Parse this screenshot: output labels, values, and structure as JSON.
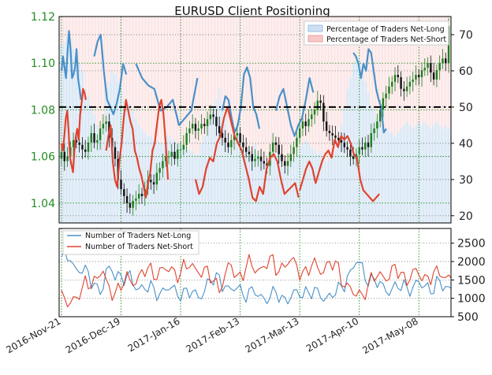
{
  "colors": {
    "long": "#4a90c8",
    "short": "#e0432e",
    "up_candle": "#1e7d1e",
    "down_candle": "#111111",
    "price_axis": "#228b22",
    "grid": "#228b22",
    "long_bg": "#dbe8f5",
    "short_bg": "#fbe3e3"
  },
  "chart_data": [
    {
      "type": "candlestick+line",
      "title": "EURUSD Client Positioning",
      "left_axis": {
        "ticks": [
          "1.04",
          "1.06",
          "1.08",
          "1.10",
          "1.12"
        ],
        "ylim": [
          1.0315,
          1.12
        ]
      },
      "right_axis": {
        "ticks": [
          "20",
          "30",
          "40",
          "50",
          "60",
          "70"
        ],
        "ylim": [
          18,
          75
        ]
      },
      "x_labels": [
        "2016-Nov-21",
        "2016-Dec-19",
        "2017-Jan-16",
        "2017-Feb-13",
        "2017-Mar-13",
        "2017-Apr-10",
        "2017-May-08"
      ],
      "reference_line": 50,
      "legend": [
        "Percentage of Traders Net-Long",
        "Percentage of Traders Net-Short"
      ],
      "close": [
        1.062,
        1.058,
        1.06,
        1.064,
        1.067,
        1.066,
        1.065,
        1.063,
        1.062,
        1.066,
        1.07,
        1.066,
        1.067,
        1.072,
        1.074,
        1.075,
        1.068,
        1.064,
        1.059,
        1.05,
        1.046,
        1.043,
        1.04,
        1.038,
        1.041,
        1.042,
        1.044,
        1.043,
        1.046,
        1.05,
        1.049,
        1.048,
        1.053,
        1.055,
        1.058,
        1.06,
        1.06,
        1.062,
        1.059,
        1.063,
        1.063,
        1.065,
        1.07,
        1.072,
        1.074,
        1.071,
        1.072,
        1.074,
        1.073,
        1.076,
        1.078,
        1.077,
        1.073,
        1.07,
        1.068,
        1.066,
        1.064,
        1.067,
        1.069,
        1.07,
        1.066,
        1.064,
        1.062,
        1.061,
        1.058,
        1.059,
        1.06,
        1.058,
        1.057,
        1.056,
        1.062,
        1.066,
        1.065,
        1.061,
        1.058,
        1.056,
        1.058,
        1.061,
        1.064,
        1.068,
        1.072,
        1.075,
        1.073,
        1.076,
        1.078,
        1.08,
        1.084,
        1.083,
        1.075,
        1.071,
        1.07,
        1.069,
        1.068,
        1.067,
        1.066,
        1.064,
        1.063,
        1.06,
        1.059,
        1.061,
        1.064,
        1.063,
        1.066,
        1.064,
        1.07,
        1.072,
        1.075,
        1.08,
        1.085,
        1.087,
        1.09,
        1.092,
        1.095,
        1.094,
        1.089,
        1.088,
        1.09,
        1.092,
        1.093,
        1.095,
        1.094,
        1.097,
        1.098,
        1.1,
        1.096,
        1.093,
        1.097,
        1.1,
        1.102,
        1.1,
        1.116
      ],
      "net_long_pct": [
        67,
        68,
        70,
        69,
        66,
        64,
        62,
        60,
        55,
        53,
        50,
        48,
        45,
        43,
        44,
        55,
        57,
        60,
        59,
        57,
        55,
        52,
        50,
        51,
        49,
        47,
        45,
        44,
        43,
        42,
        42,
        41,
        41,
        40,
        40,
        42,
        42,
        41,
        41,
        40,
        40,
        39,
        39,
        38,
        38,
        37,
        37,
        40,
        42,
        45,
        48,
        50,
        52,
        55,
        50,
        47,
        40,
        39,
        42,
        45,
        43,
        40,
        38,
        37,
        38,
        40,
        37,
        36,
        35,
        34,
        35,
        36,
        38,
        37,
        35,
        33,
        34,
        35,
        36,
        37,
        39,
        40,
        41,
        40,
        39,
        38,
        37,
        38,
        36,
        35,
        36,
        37,
        38,
        40,
        45,
        50,
        55,
        58,
        62,
        64,
        63,
        62,
        57,
        54,
        50,
        49,
        47,
        45,
        44,
        44,
        43,
        43,
        42,
        43,
        44,
        45,
        46,
        45,
        44,
        45,
        46,
        45,
        46,
        45,
        44,
        45,
        46,
        45,
        44,
        45,
        44,
        45
      ],
      "net_short_pct": [
        33,
        32,
        30,
        31,
        34,
        36,
        38,
        40,
        45,
        47,
        50,
        52,
        55,
        57,
        56,
        45,
        43,
        40,
        41,
        43,
        45,
        48,
        50,
        49,
        51,
        53,
        55,
        56,
        57,
        58,
        58,
        59,
        59,
        60,
        60,
        58,
        58,
        59,
        59,
        60,
        60,
        61,
        61,
        62,
        62,
        63,
        63,
        60,
        58,
        55,
        52,
        50,
        48,
        45,
        50,
        53,
        60,
        61,
        58,
        55,
        57,
        60,
        62,
        63,
        62,
        60,
        63,
        64,
        65,
        66,
        65,
        64,
        62,
        63,
        65,
        67,
        66,
        65,
        64,
        63,
        61,
        60,
        59,
        60,
        61,
        62,
        63,
        62,
        64,
        65,
        64,
        63,
        62,
        60,
        55,
        50,
        45,
        42,
        38,
        36,
        37,
        38,
        43,
        46,
        50,
        51,
        53,
        55,
        56,
        56,
        57,
        57,
        58,
        57,
        56,
        55,
        54,
        55,
        56,
        55,
        54,
        55,
        54,
        55,
        56,
        55,
        54,
        55,
        56,
        55,
        56,
        55
      ],
      "net_long_segments": [
        {
          "from": 0,
          "to": 1,
          "values": [
            60,
            64,
            61,
            58,
            65,
            71,
            66,
            58,
            59,
            61,
            66,
            58,
            55,
            52
          ]
        },
        {
          "from": 11,
          "to": 18,
          "values": [
            64,
            68,
            70,
            60,
            52,
            50,
            48,
            51,
            55,
            62,
            59
          ]
        },
        {
          "from": 25,
          "to": 43,
          "values": [
            62,
            58,
            56,
            55,
            49,
            50,
            52,
            45,
            47,
            49,
            58
          ]
        },
        {
          "from": 54,
          "to": 62,
          "values": [
            49,
            53,
            52,
            47,
            43,
            45,
            50,
            59,
            61,
            58,
            50,
            48,
            44
          ]
        },
        {
          "from": 72,
          "to": 81,
          "values": [
            49,
            53,
            55,
            50,
            45,
            42,
            45,
            47,
            52,
            58,
            54
          ]
        },
        {
          "from": 98,
          "to": 104,
          "values": [
            65,
            64,
            62,
            58,
            62,
            60,
            66,
            65,
            60,
            55,
            52,
            50,
            43,
            44
          ]
        }
      ],
      "net_short_segments": [
        {
          "from": 0,
          "to": 1,
          "values": [
            40,
            38,
            42,
            47,
            49,
            43,
            36,
            34,
            32,
            38,
            42,
            44,
            41,
            48,
            51,
            55,
            54,
            52
          ]
        },
        {
          "from": 15,
          "to": 25,
          "values": [
            38,
            42,
            45,
            35,
            30,
            28,
            35,
            40,
            47,
            52,
            49,
            46,
            44,
            38,
            36,
            33,
            31,
            28,
            25,
            29,
            32,
            38,
            40,
            45,
            50,
            52,
            48,
            40,
            30
          ]
        },
        {
          "from": 45,
          "to": 70,
          "values": [
            30,
            26,
            28,
            33,
            36,
            35,
            40,
            42,
            47,
            50,
            46,
            42,
            40,
            38,
            34,
            30,
            25,
            24,
            28,
            26,
            33,
            36,
            37,
            35,
            30,
            26,
            27,
            28,
            29,
            25
          ]
        },
        {
          "from": 80,
          "to": 98,
          "values": [
            27,
            30,
            33,
            35,
            33,
            29,
            32,
            35,
            37,
            38,
            36,
            41,
            39,
            42,
            41,
            42,
            40,
            37,
            36,
            30,
            27,
            26,
            25,
            24,
            25,
            26
          ]
        }
      ]
    },
    {
      "type": "line",
      "right_axis": {
        "ticks": [
          "500",
          "1000",
          "1500",
          "2000",
          "2500"
        ],
        "ylim": [
          500,
          2900
        ]
      },
      "legend": [
        "Number of Traders Net-Long",
        "Number of Traders Net-Short"
      ]
    }
  ]
}
